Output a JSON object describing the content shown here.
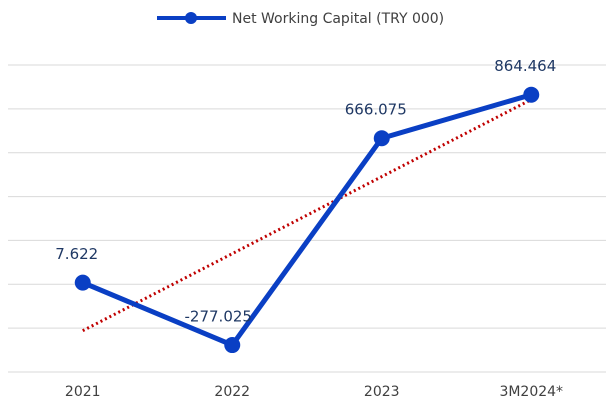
{
  "chart_data": {
    "type": "line",
    "categories": [
      "2021",
      "2022",
      "2023",
      "3M2024*"
    ],
    "series": [
      {
        "name": "Net Working Capital (TRY 000)",
        "color": "#0a3fc4",
        "values": [
          7622,
          -277025,
          666075,
          864464
        ],
        "value_labels": [
          "7.622",
          "-277.025",
          "666.075",
          "864.464"
        ]
      }
    ],
    "trendline": {
      "type": "linear",
      "color": "#c00000"
    },
    "ylim": [
      -400000,
      1000000
    ],
    "yticks": [
      -400000,
      -200000,
      0,
      200000,
      400000,
      600000,
      800000,
      1000000
    ],
    "grid": true,
    "legend": "top"
  }
}
